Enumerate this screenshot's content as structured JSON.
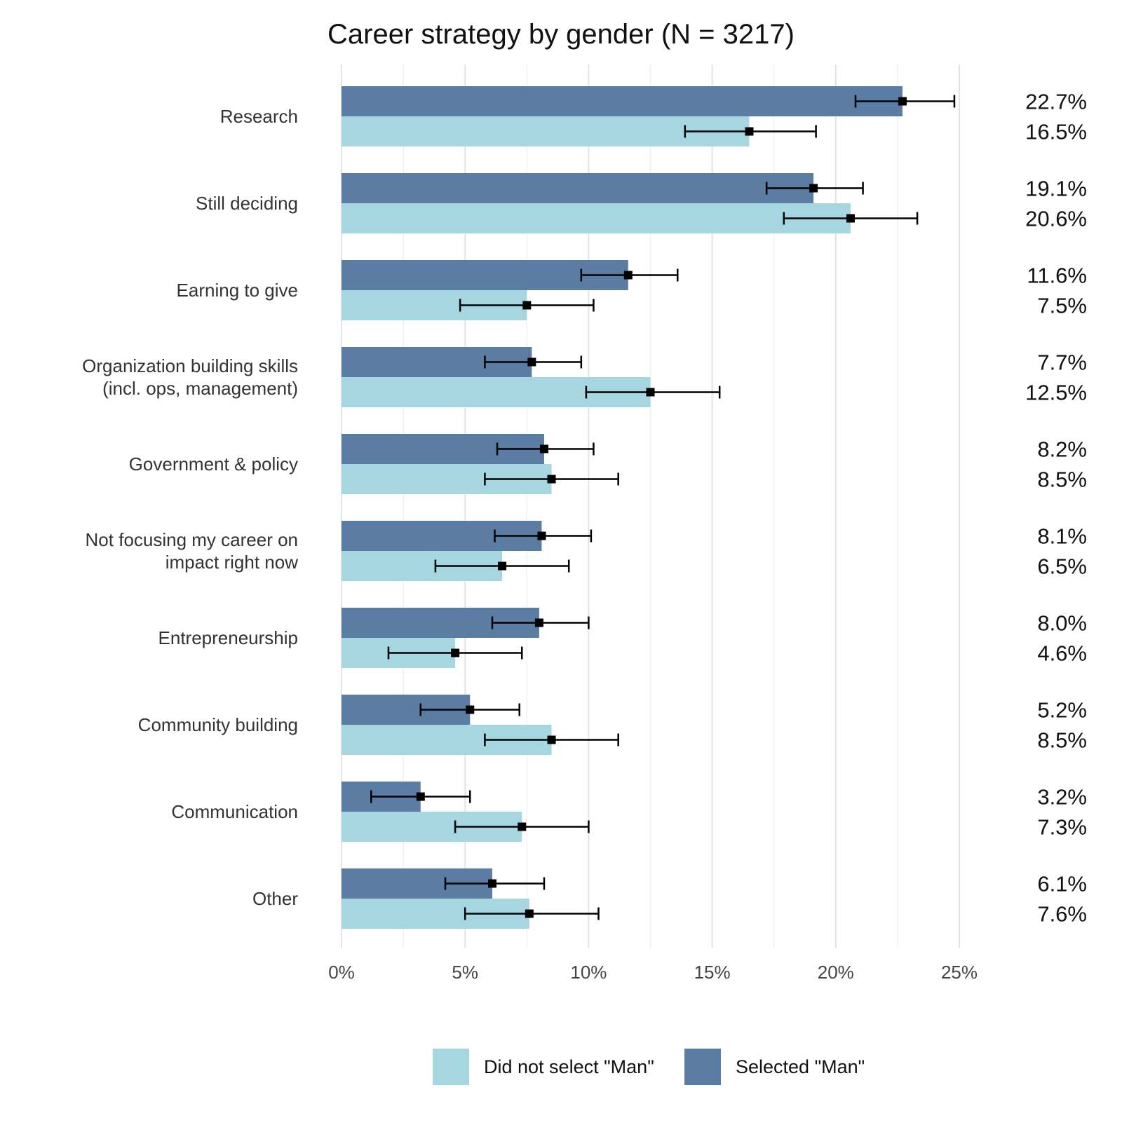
{
  "chart_data": {
    "type": "bar",
    "orientation": "horizontal",
    "title": "Career strategy by gender (N = 3217)",
    "xlabel": "",
    "ylabel": "",
    "xlim": [
      0,
      25
    ],
    "x_ticks": [
      0,
      5,
      10,
      15,
      20,
      25
    ],
    "x_tick_labels": [
      "0%",
      "5%",
      "10%",
      "15%",
      "20%",
      "25%"
    ],
    "grid": "vertical",
    "legend_position": "bottom",
    "categories": [
      [
        "Research"
      ],
      [
        "Still deciding"
      ],
      [
        "Earning to give"
      ],
      [
        "Organization building skills",
        "(incl. ops, management)"
      ],
      [
        "Government & policy"
      ],
      [
        "Not focusing my career on",
        "impact right now"
      ],
      [
        "Entrepreneurship"
      ],
      [
        "Community building"
      ],
      [
        "Communication"
      ],
      [
        "Other"
      ]
    ],
    "series": [
      {
        "name": "Selected \"Man\"",
        "color": "#5b7da3",
        "values": [
          22.7,
          19.1,
          11.6,
          7.7,
          8.2,
          8.1,
          8.0,
          5.2,
          3.2,
          6.1
        ],
        "labels": [
          "22.7%",
          "19.1%",
          "11.6%",
          "7.7%",
          "8.2%",
          "8.1%",
          "8.0%",
          "5.2%",
          "3.2%",
          "6.1%"
        ],
        "error_low": [
          20.8,
          17.2,
          9.7,
          5.8,
          6.3,
          6.2,
          6.1,
          3.2,
          1.2,
          4.2
        ],
        "error_high": [
          24.8,
          21.1,
          13.6,
          9.7,
          10.2,
          10.1,
          10.0,
          7.2,
          5.2,
          8.2
        ]
      },
      {
        "name": "Did not select \"Man\"",
        "color": "#a6d6df",
        "values": [
          16.5,
          20.6,
          7.5,
          12.5,
          8.5,
          6.5,
          4.6,
          8.5,
          7.3,
          7.6
        ],
        "labels": [
          "16.5%",
          "20.6%",
          "7.5%",
          "12.5%",
          "8.5%",
          "6.5%",
          "4.6%",
          "8.5%",
          "7.3%",
          "7.6%"
        ],
        "error_low": [
          13.9,
          17.9,
          4.8,
          9.9,
          5.8,
          3.8,
          1.9,
          5.8,
          4.6,
          5.0
        ],
        "error_high": [
          19.2,
          23.3,
          10.2,
          15.3,
          11.2,
          9.2,
          7.3,
          11.2,
          10.0,
          10.4
        ]
      }
    ],
    "legend": [
      "Did not select \"Man\"",
      "Selected \"Man\""
    ]
  }
}
